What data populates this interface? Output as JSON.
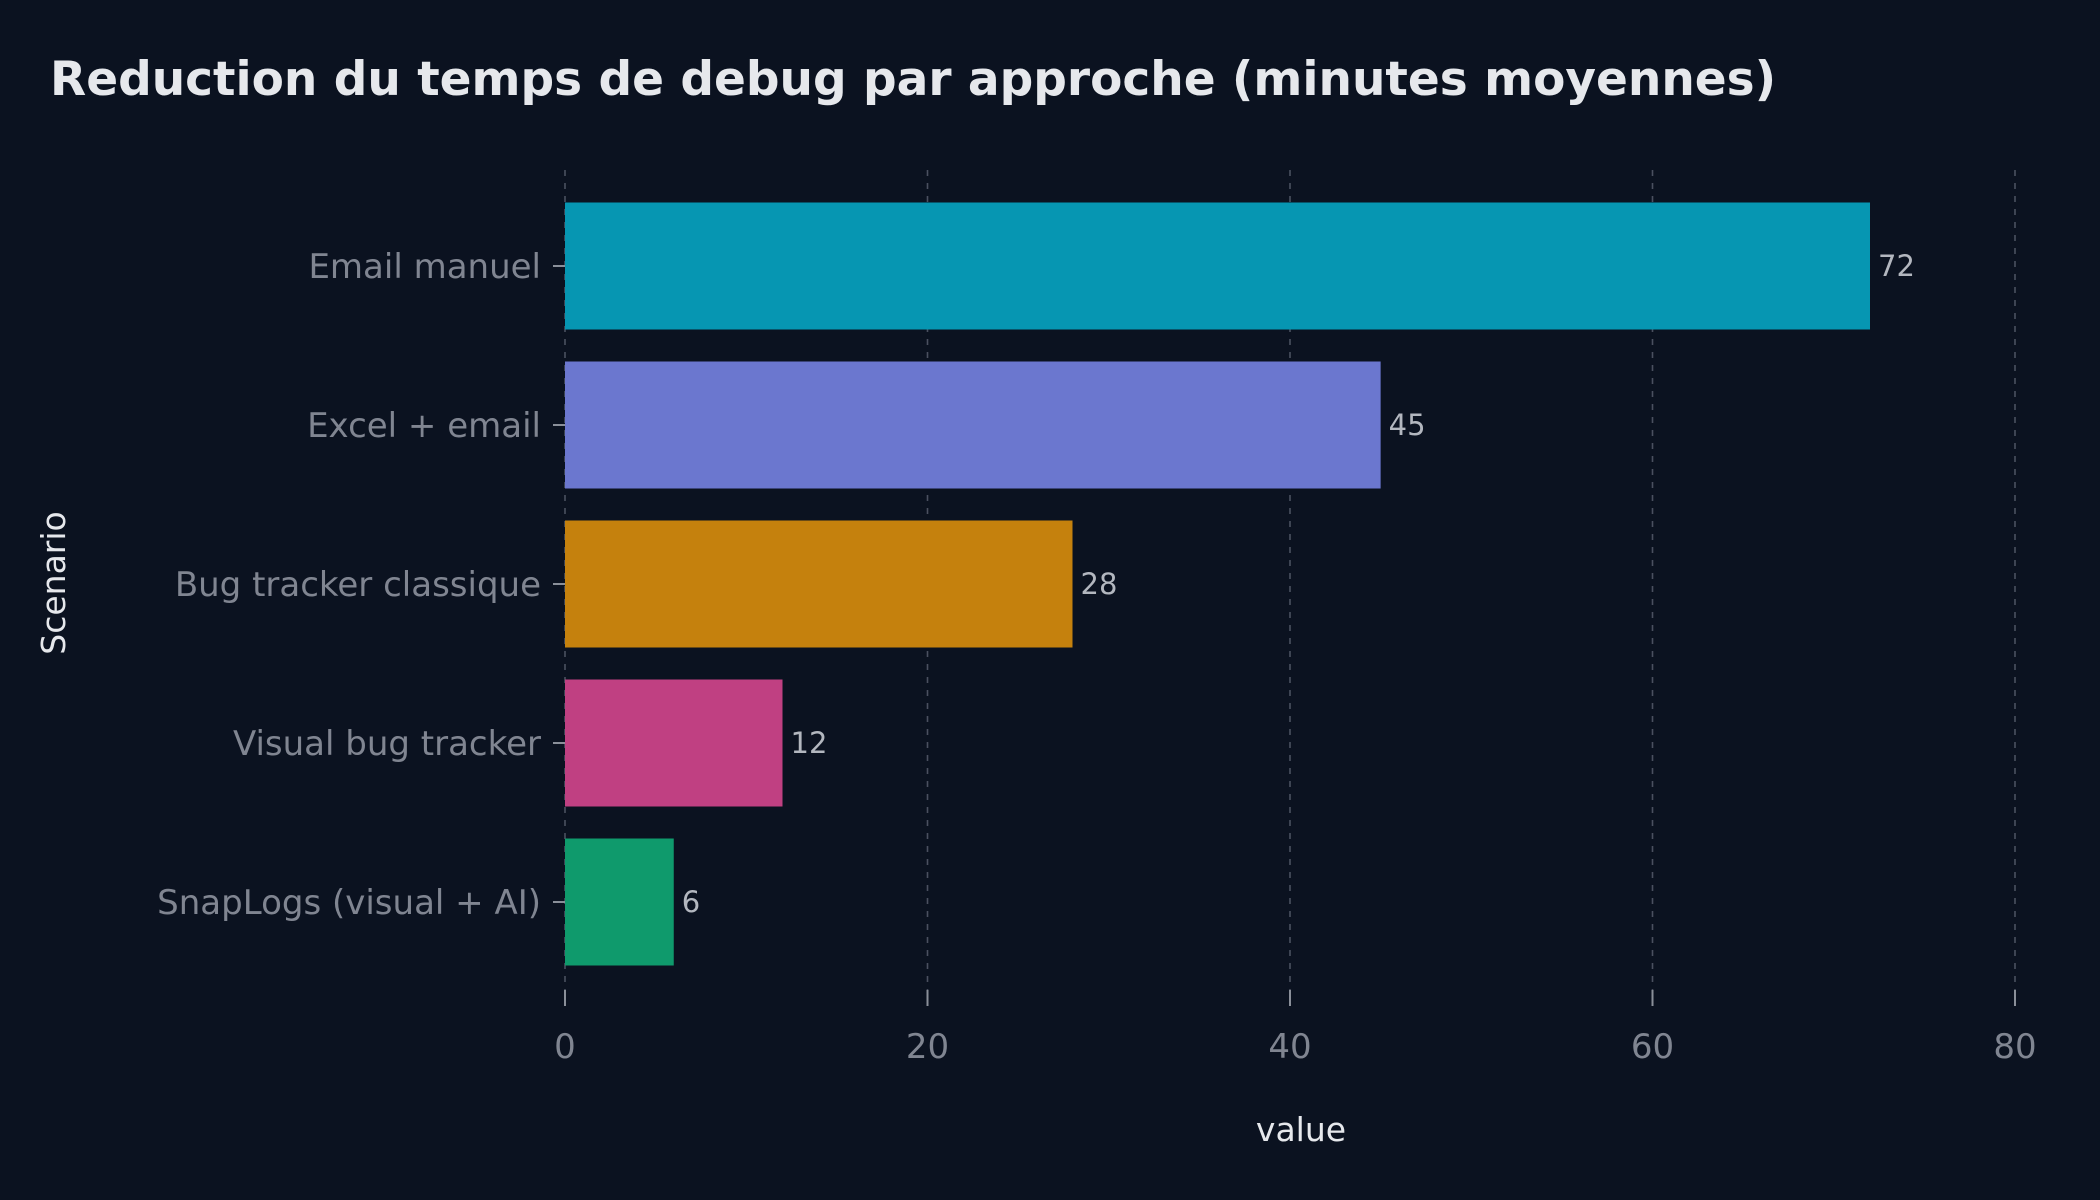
{
  "chart_data": {
    "type": "bar",
    "orientation": "horizontal",
    "title": "Reduction du temps de debug par approche (minutes moyennes)",
    "xlabel": "value",
    "ylabel": "Scenario",
    "xlim": [
      0,
      80
    ],
    "xticks": [
      "0",
      "20",
      "40",
      "60",
      "80"
    ],
    "grid": "vertical-dashed",
    "legend": "none",
    "categories": [
      "Email manuel",
      "Excel + email",
      "Bug tracker classique",
      "Visual bug tracker",
      "SnapLogs (visual + AI)"
    ],
    "values": [
      72,
      45,
      28,
      12,
      6
    ],
    "value_labels": [
      "72",
      "45",
      "28",
      "12",
      "6"
    ],
    "colors": [
      "#0696b2",
      "#6b77cf",
      "#c5810d",
      "#c04082",
      "#0f9a6c"
    ]
  },
  "theme": {
    "background": "#0b1220",
    "text": "#e6e8ec",
    "tick_text": "#808591",
    "grid": "#4a5060"
  }
}
